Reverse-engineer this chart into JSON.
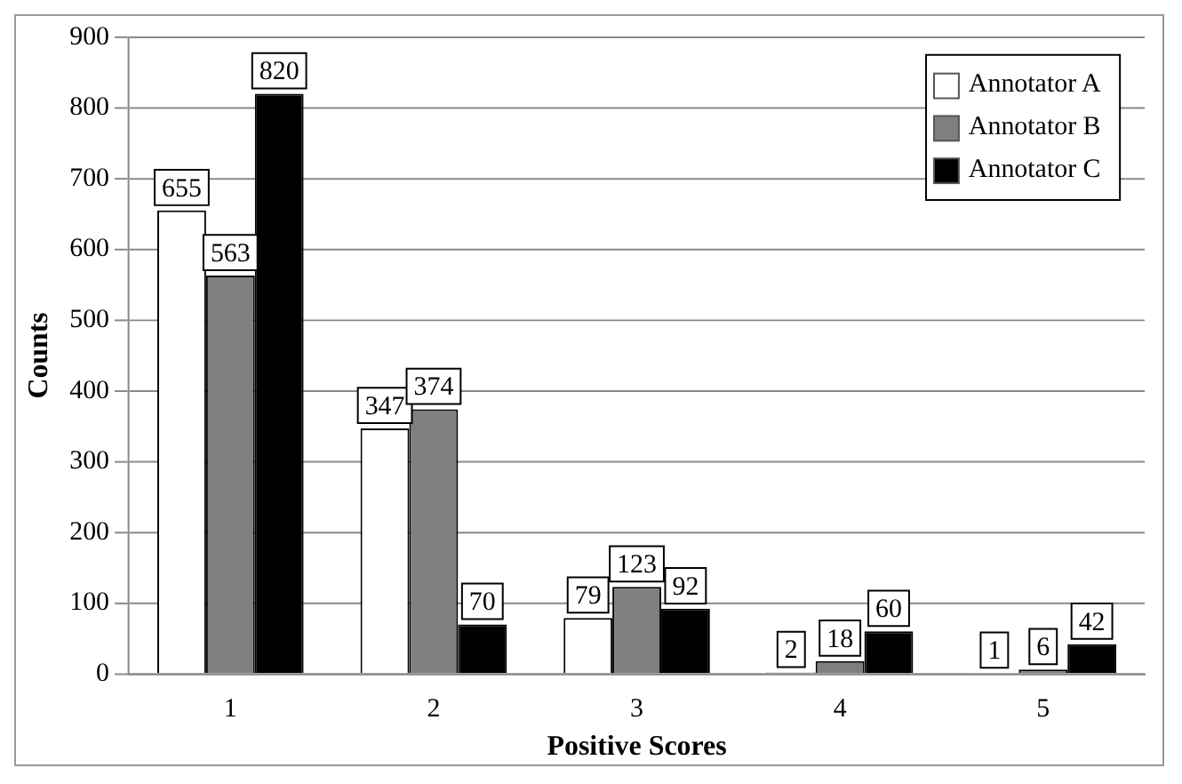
{
  "chart_data": {
    "type": "bar",
    "xlabel": "Positive Scores",
    "ylabel": "Counts",
    "categories": [
      "1",
      "2",
      "3",
      "4",
      "5"
    ],
    "series": [
      {
        "name": "Annotator A",
        "color": "#ffffff",
        "values": [
          655,
          347,
          79,
          2,
          1
        ]
      },
      {
        "name": "Annotator B",
        "color": "#7f7f7f",
        "values": [
          563,
          374,
          123,
          18,
          6
        ]
      },
      {
        "name": "Annotator C",
        "color": "#000000",
        "values": [
          820,
          70,
          92,
          60,
          42
        ]
      }
    ],
    "ylim": [
      0,
      900
    ],
    "yticks": [
      0,
      100,
      200,
      300,
      400,
      500,
      600,
      700,
      800,
      900
    ],
    "grid": "y",
    "legend": "top right",
    "data_labels": true
  }
}
